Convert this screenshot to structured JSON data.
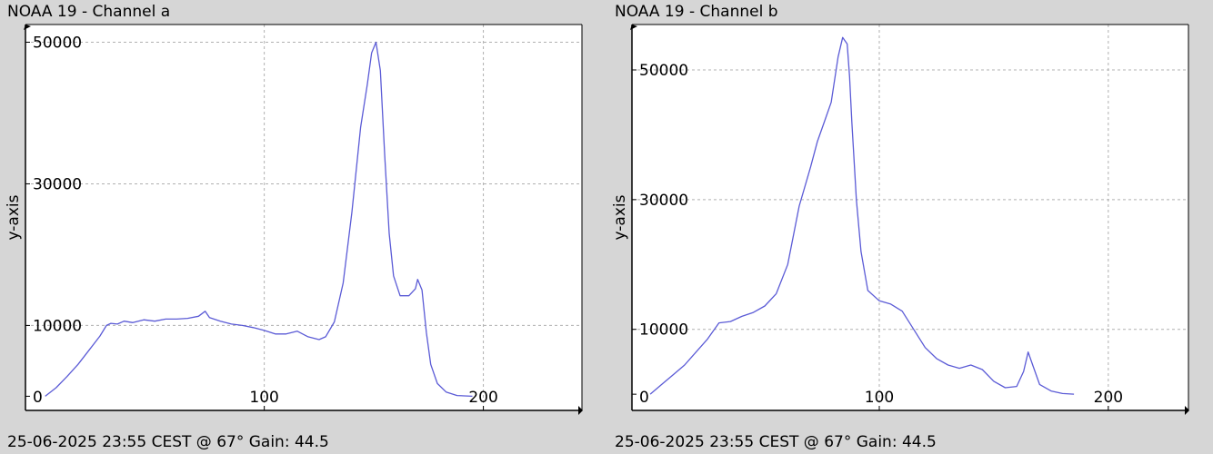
{
  "footer_text": "25-06-2025 23:55 CEST @ 67° Gain: 44.5",
  "chart_data": [
    {
      "type": "line",
      "title": "NOAA 19 - Channel a",
      "ylabel": "y-axis",
      "xlabel": "",
      "xlim": [
        -9,
        245
      ],
      "ylim": [
        -2000,
        52500
      ],
      "x_ticks": [
        0,
        100,
        200
      ],
      "y_ticks": [
        0,
        10000,
        30000,
        50000
      ],
      "grid": true,
      "color": "#5b5bd6",
      "x": [
        0,
        5,
        10,
        15,
        20,
        25,
        28,
        30,
        33,
        36,
        40,
        45,
        50,
        55,
        60,
        65,
        70,
        73,
        75,
        80,
        85,
        90,
        95,
        100,
        105,
        110,
        115,
        120,
        125,
        128,
        132,
        136,
        140,
        144,
        147,
        149,
        151,
        153,
        155,
        157,
        159,
        162,
        166,
        169,
        170,
        172,
        174,
        176,
        179,
        183,
        188,
        195
      ],
      "y": [
        0,
        1200,
        2800,
        4500,
        6500,
        8500,
        10000,
        10300,
        10200,
        10600,
        10400,
        10800,
        10600,
        10900,
        10900,
        11000,
        11300,
        12000,
        11100,
        10600,
        10200,
        10000,
        9700,
        9300,
        8800,
        8800,
        9200,
        8400,
        8000,
        8400,
        10500,
        16000,
        26000,
        38000,
        44000,
        48500,
        50000,
        46000,
        34000,
        23000,
        17000,
        14200,
        14200,
        15200,
        16500,
        15000,
        9000,
        4500,
        1800,
        600,
        100,
        0
      ]
    },
    {
      "type": "line",
      "title": "NOAA 19 - Channel b",
      "ylabel": "y-axis",
      "xlabel": "",
      "xlim": [
        -8,
        235
      ],
      "ylim": [
        -2500,
        57000
      ],
      "x_ticks": [
        0,
        100,
        200
      ],
      "y_ticks": [
        0,
        10000,
        30000,
        50000
      ],
      "grid": true,
      "color": "#5b5bd6",
      "x": [
        0,
        5,
        10,
        15,
        20,
        25,
        30,
        35,
        40,
        45,
        50,
        55,
        60,
        65,
        70,
        73,
        76,
        79,
        82,
        84,
        86,
        87,
        88,
        90,
        92,
        95,
        100,
        105,
        110,
        115,
        120,
        125,
        130,
        135,
        140,
        145,
        150,
        155,
        160,
        163,
        165,
        167,
        170,
        175,
        180,
        185
      ],
      "y": [
        0,
        1500,
        3000,
        4500,
        6500,
        8500,
        11000,
        11200,
        12000,
        12600,
        13600,
        15500,
        20000,
        29000,
        35000,
        39000,
        42000,
        45000,
        52000,
        55000,
        54000,
        49000,
        42000,
        30000,
        22000,
        16000,
        14400,
        13900,
        12800,
        10000,
        7200,
        5500,
        4500,
        4000,
        4500,
        3800,
        2000,
        1000,
        1200,
        3500,
        6500,
        4500,
        1500,
        500,
        100,
        0
      ]
    }
  ]
}
